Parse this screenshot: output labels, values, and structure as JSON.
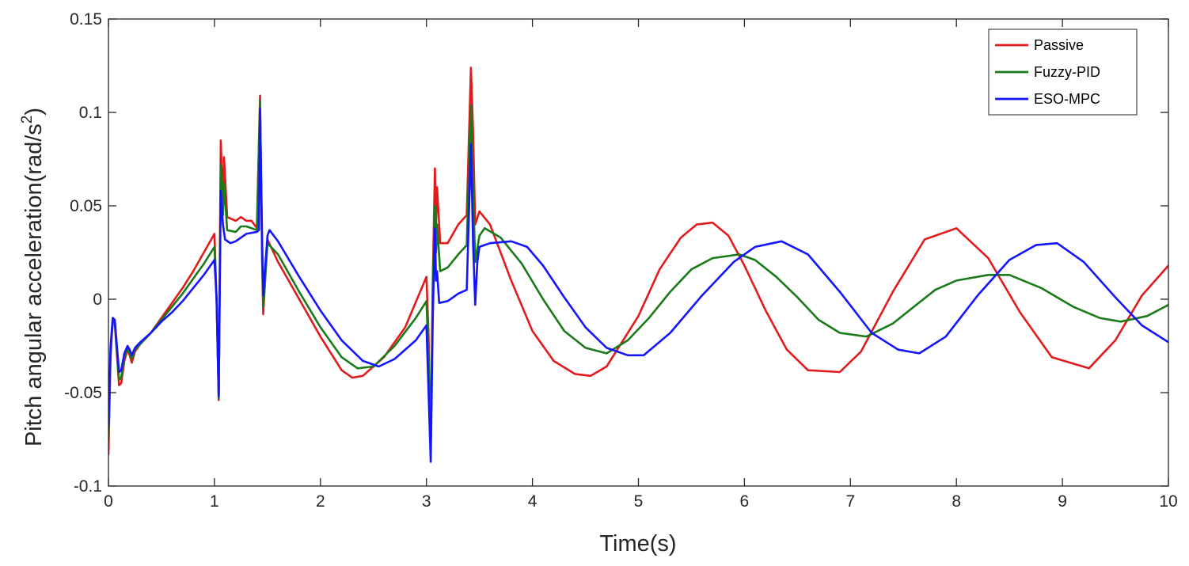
{
  "chart_data": {
    "type": "line",
    "xlabel": "Time(s)",
    "ylabel": "Pitch angular acceleration(rad/s²)",
    "ylabel_parts": {
      "pre": "Pitch angular acceleration(rad/s",
      "sup": "2",
      "post": ")"
    },
    "xlim": [
      0,
      10
    ],
    "ylim": [
      -0.1,
      0.15
    ],
    "xticks": [
      0,
      1,
      2,
      3,
      4,
      5,
      6,
      7,
      8,
      9,
      10
    ],
    "xtick_labels": [
      "0",
      "1",
      "2",
      "3",
      "4",
      "5",
      "6",
      "7",
      "8",
      "9",
      "10"
    ],
    "yticks": [
      -0.1,
      -0.05,
      0,
      0.05,
      0.1,
      0.15
    ],
    "ytick_labels": [
      "-0.1",
      "-0.05",
      "0",
      "0.05",
      "0.1",
      "0.15"
    ],
    "grid": false,
    "legend_position": "top-right",
    "series": [
      {
        "name": "Passive",
        "color": "#e31a1c",
        "points": [
          [
            0,
            -0.083
          ],
          [
            0.02,
            -0.03
          ],
          [
            0.04,
            -0.012
          ],
          [
            0.06,
            -0.013
          ],
          [
            0.08,
            -0.03
          ],
          [
            0.1,
            -0.046
          ],
          [
            0.12,
            -0.045
          ],
          [
            0.15,
            -0.033
          ],
          [
            0.18,
            -0.027
          ],
          [
            0.2,
            -0.03
          ],
          [
            0.22,
            -0.034
          ],
          [
            0.25,
            -0.028
          ],
          [
            0.3,
            -0.024
          ],
          [
            0.4,
            -0.018
          ],
          [
            0.5,
            -0.01
          ],
          [
            0.6,
            -0.002
          ],
          [
            0.7,
            0.006
          ],
          [
            0.8,
            0.015
          ],
          [
            0.9,
            0.025
          ],
          [
            1.0,
            0.035
          ],
          [
            1.02,
            0.0
          ],
          [
            1.04,
            -0.054
          ],
          [
            1.06,
            0.085
          ],
          [
            1.08,
            0.05
          ],
          [
            1.09,
            0.076
          ],
          [
            1.12,
            0.044
          ],
          [
            1.2,
            0.042
          ],
          [
            1.25,
            0.044
          ],
          [
            1.3,
            0.042
          ],
          [
            1.35,
            0.042
          ],
          [
            1.4,
            0.038
          ],
          [
            1.43,
            0.109
          ],
          [
            1.45,
            0.02
          ],
          [
            1.46,
            -0.008
          ],
          [
            1.47,
            0.002
          ],
          [
            1.5,
            0.032
          ],
          [
            1.6,
            0.02
          ],
          [
            1.8,
            0.0
          ],
          [
            2.0,
            -0.02
          ],
          [
            2.2,
            -0.038
          ],
          [
            2.3,
            -0.042
          ],
          [
            2.4,
            -0.041
          ],
          [
            2.6,
            -0.031
          ],
          [
            2.8,
            -0.015
          ],
          [
            3.0,
            0.012
          ],
          [
            3.02,
            -0.02
          ],
          [
            3.04,
            -0.08
          ],
          [
            3.06,
            0.01
          ],
          [
            3.08,
            0.07
          ],
          [
            3.09,
            0.04
          ],
          [
            3.1,
            0.06
          ],
          [
            3.13,
            0.03
          ],
          [
            3.2,
            0.03
          ],
          [
            3.3,
            0.04
          ],
          [
            3.38,
            0.045
          ],
          [
            3.42,
            0.124
          ],
          [
            3.44,
            0.09
          ],
          [
            3.46,
            0.04
          ],
          [
            3.5,
            0.047
          ],
          [
            3.6,
            0.04
          ],
          [
            3.8,
            0.01
          ],
          [
            4.0,
            -0.017
          ],
          [
            4.2,
            -0.033
          ],
          [
            4.4,
            -0.04
          ],
          [
            4.55,
            -0.041
          ],
          [
            4.7,
            -0.036
          ],
          [
            5.0,
            -0.009
          ],
          [
            5.2,
            0.016
          ],
          [
            5.4,
            0.033
          ],
          [
            5.55,
            0.04
          ],
          [
            5.7,
            0.041
          ],
          [
            5.85,
            0.034
          ],
          [
            6.0,
            0.018
          ],
          [
            6.2,
            -0.006
          ],
          [
            6.4,
            -0.027
          ],
          [
            6.6,
            -0.038
          ],
          [
            6.9,
            -0.039
          ],
          [
            7.1,
            -0.028
          ],
          [
            7.4,
            0.004
          ],
          [
            7.7,
            0.032
          ],
          [
            8.0,
            0.038
          ],
          [
            8.3,
            0.022
          ],
          [
            8.6,
            -0.007
          ],
          [
            8.9,
            -0.031
          ],
          [
            9.25,
            -0.037
          ],
          [
            9.5,
            -0.022
          ],
          [
            9.75,
            0.002
          ],
          [
            10.0,
            0.018
          ]
        ]
      },
      {
        "name": "Fuzzy-PID",
        "color": "#1a7a1a",
        "points": [
          [
            0,
            -0.075
          ],
          [
            0.02,
            -0.028
          ],
          [
            0.04,
            -0.011
          ],
          [
            0.06,
            -0.012
          ],
          [
            0.08,
            -0.028
          ],
          [
            0.1,
            -0.043
          ],
          [
            0.12,
            -0.042
          ],
          [
            0.15,
            -0.031
          ],
          [
            0.18,
            -0.026
          ],
          [
            0.2,
            -0.029
          ],
          [
            0.22,
            -0.032
          ],
          [
            0.25,
            -0.027
          ],
          [
            0.3,
            -0.024
          ],
          [
            0.4,
            -0.018
          ],
          [
            0.5,
            -0.011
          ],
          [
            0.6,
            -0.004
          ],
          [
            0.7,
            0.003
          ],
          [
            0.8,
            0.011
          ],
          [
            0.9,
            0.019
          ],
          [
            1.0,
            0.028
          ],
          [
            1.02,
            0.0
          ],
          [
            1.04,
            -0.053
          ],
          [
            1.06,
            0.072
          ],
          [
            1.08,
            0.045
          ],
          [
            1.09,
            0.062
          ],
          [
            1.12,
            0.037
          ],
          [
            1.2,
            0.036
          ],
          [
            1.25,
            0.039
          ],
          [
            1.3,
            0.039
          ],
          [
            1.35,
            0.038
          ],
          [
            1.4,
            0.037
          ],
          [
            1.43,
            0.106
          ],
          [
            1.45,
            0.02
          ],
          [
            1.46,
            -0.004
          ],
          [
            1.47,
            0.003
          ],
          [
            1.5,
            0.03
          ],
          [
            1.6,
            0.024
          ],
          [
            1.8,
            0.004
          ],
          [
            2.0,
            -0.015
          ],
          [
            2.2,
            -0.031
          ],
          [
            2.35,
            -0.037
          ],
          [
            2.5,
            -0.036
          ],
          [
            2.7,
            -0.025
          ],
          [
            2.9,
            -0.01
          ],
          [
            3.0,
            -0.001
          ],
          [
            3.02,
            -0.03
          ],
          [
            3.04,
            -0.08
          ],
          [
            3.06,
            0.005
          ],
          [
            3.08,
            0.05
          ],
          [
            3.09,
            0.025
          ],
          [
            3.1,
            0.04
          ],
          [
            3.13,
            0.015
          ],
          [
            3.2,
            0.017
          ],
          [
            3.3,
            0.024
          ],
          [
            3.38,
            0.029
          ],
          [
            3.42,
            0.104
          ],
          [
            3.44,
            0.06
          ],
          [
            3.46,
            0.02
          ],
          [
            3.5,
            0.034
          ],
          [
            3.55,
            0.038
          ],
          [
            3.7,
            0.033
          ],
          [
            3.9,
            0.019
          ],
          [
            4.1,
            0.0
          ],
          [
            4.3,
            -0.017
          ],
          [
            4.5,
            -0.026
          ],
          [
            4.7,
            -0.029
          ],
          [
            4.9,
            -0.022
          ],
          [
            5.1,
            -0.01
          ],
          [
            5.3,
            0.004
          ],
          [
            5.5,
            0.016
          ],
          [
            5.7,
            0.022
          ],
          [
            5.95,
            0.024
          ],
          [
            6.1,
            0.021
          ],
          [
            6.3,
            0.012
          ],
          [
            6.5,
            0.001
          ],
          [
            6.7,
            -0.011
          ],
          [
            6.9,
            -0.018
          ],
          [
            7.15,
            -0.02
          ],
          [
            7.4,
            -0.013
          ],
          [
            7.6,
            -0.004
          ],
          [
            7.8,
            0.005
          ],
          [
            8.0,
            0.01
          ],
          [
            8.3,
            0.013
          ],
          [
            8.5,
            0.013
          ],
          [
            8.8,
            0.006
          ],
          [
            9.1,
            -0.004
          ],
          [
            9.35,
            -0.01
          ],
          [
            9.55,
            -0.012
          ],
          [
            9.8,
            -0.009
          ],
          [
            10.0,
            -0.003
          ]
        ]
      },
      {
        "name": "ESO-MPC",
        "color": "#1414ff",
        "points": [
          [
            0,
            -0.068
          ],
          [
            0.02,
            -0.025
          ],
          [
            0.04,
            -0.01
          ],
          [
            0.06,
            -0.011
          ],
          [
            0.08,
            -0.025
          ],
          [
            0.1,
            -0.039
          ],
          [
            0.12,
            -0.038
          ],
          [
            0.15,
            -0.029
          ],
          [
            0.18,
            -0.025
          ],
          [
            0.2,
            -0.027
          ],
          [
            0.22,
            -0.03
          ],
          [
            0.25,
            -0.026
          ],
          [
            0.3,
            -0.023
          ],
          [
            0.4,
            -0.018
          ],
          [
            0.5,
            -0.012
          ],
          [
            0.6,
            -0.007
          ],
          [
            0.7,
            -0.001
          ],
          [
            0.8,
            0.006
          ],
          [
            0.9,
            0.013
          ],
          [
            1.0,
            0.021
          ],
          [
            1.02,
            0.0
          ],
          [
            1.04,
            -0.052
          ],
          [
            1.06,
            0.058
          ],
          [
            1.08,
            0.04
          ],
          [
            1.1,
            0.032
          ],
          [
            1.15,
            0.03
          ],
          [
            1.2,
            0.031
          ],
          [
            1.3,
            0.035
          ],
          [
            1.4,
            0.036
          ],
          [
            1.42,
            0.037
          ],
          [
            1.43,
            0.102
          ],
          [
            1.45,
            0.03
          ],
          [
            1.46,
            0.002
          ],
          [
            1.47,
            0.01
          ],
          [
            1.5,
            0.034
          ],
          [
            1.52,
            0.037
          ],
          [
            1.6,
            0.031
          ],
          [
            1.8,
            0.012
          ],
          [
            2.0,
            -0.006
          ],
          [
            2.2,
            -0.022
          ],
          [
            2.4,
            -0.033
          ],
          [
            2.55,
            -0.036
          ],
          [
            2.7,
            -0.032
          ],
          [
            2.9,
            -0.022
          ],
          [
            3.0,
            -0.014
          ],
          [
            3.02,
            -0.05
          ],
          [
            3.04,
            -0.087
          ],
          [
            3.06,
            -0.01
          ],
          [
            3.08,
            0.038
          ],
          [
            3.09,
            0.01
          ],
          [
            3.1,
            0.015
          ],
          [
            3.12,
            -0.002
          ],
          [
            3.2,
            -0.001
          ],
          [
            3.3,
            0.003
          ],
          [
            3.38,
            0.005
          ],
          [
            3.42,
            0.083
          ],
          [
            3.44,
            0.03
          ],
          [
            3.46,
            -0.003
          ],
          [
            3.48,
            0.02
          ],
          [
            3.5,
            0.028
          ],
          [
            3.6,
            0.03
          ],
          [
            3.8,
            0.031
          ],
          [
            3.95,
            0.028
          ],
          [
            4.1,
            0.018
          ],
          [
            4.3,
            0.001
          ],
          [
            4.5,
            -0.015
          ],
          [
            4.7,
            -0.026
          ],
          [
            4.9,
            -0.03
          ],
          [
            5.05,
            -0.03
          ],
          [
            5.3,
            -0.018
          ],
          [
            5.6,
            0.002
          ],
          [
            5.9,
            0.02
          ],
          [
            6.1,
            0.028
          ],
          [
            6.35,
            0.031
          ],
          [
            6.6,
            0.024
          ],
          [
            6.9,
            0.004
          ],
          [
            7.2,
            -0.018
          ],
          [
            7.45,
            -0.027
          ],
          [
            7.65,
            -0.029
          ],
          [
            7.9,
            -0.02
          ],
          [
            8.2,
            0.002
          ],
          [
            8.5,
            0.021
          ],
          [
            8.75,
            0.029
          ],
          [
            8.95,
            0.03
          ],
          [
            9.2,
            0.02
          ],
          [
            9.5,
            0.001
          ],
          [
            9.75,
            -0.014
          ],
          [
            10.0,
            -0.023
          ]
        ]
      }
    ]
  }
}
